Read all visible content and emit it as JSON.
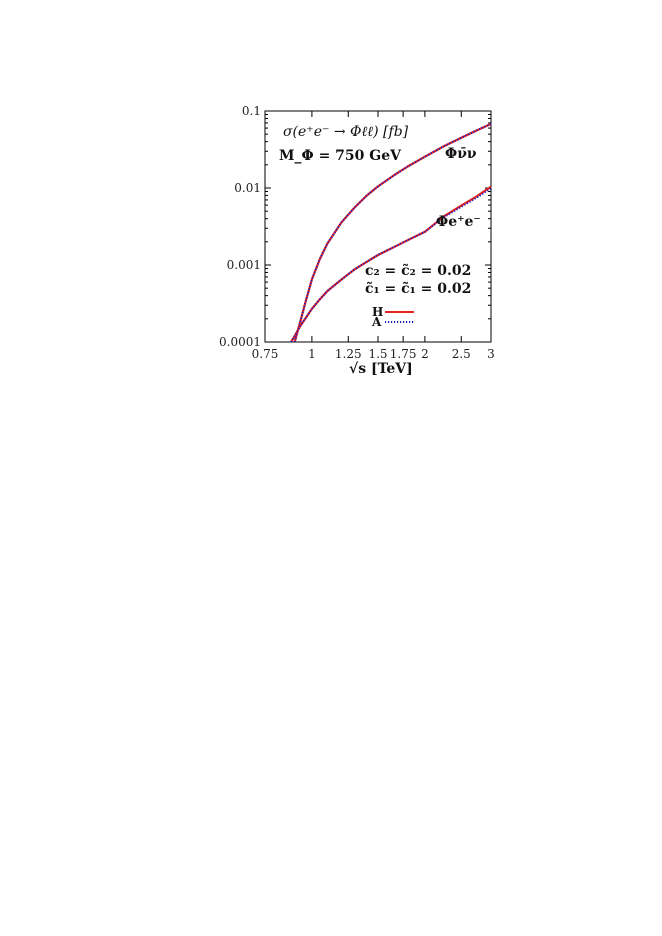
{
  "chart_data": {
    "type": "line",
    "title": "σ(e⁺e⁻ → Φℓℓ) [fb]",
    "subtitle": "M_Φ = 750 GeV",
    "xlabel": "√s [TeV]",
    "ylabel": "",
    "x_scale": "log",
    "y_scale": "log",
    "xlim": [
      0.75,
      3
    ],
    "ylim": [
      0.0001,
      0.1
    ],
    "x_ticks": [
      0.75,
      1,
      1.25,
      1.5,
      1.75,
      2,
      2.5,
      3
    ],
    "x_tick_labels": [
      "0.75",
      "1",
      "1.25",
      "1.5",
      "1.75",
      "2",
      "2.5",
      "3"
    ],
    "y_ticks": [
      0.0001,
      0.001,
      0.01,
      0.1
    ],
    "y_tick_labels": [
      "0.0001",
      "0.001",
      "0.01",
      "0.1"
    ],
    "grid": false,
    "legend_position": "right",
    "annotations": {
      "coupling_line_1": "c₂ = c̃₂ = 0.02",
      "coupling_line_2": "c̃₁ = c̃₁ = 0.02",
      "curve_label_nu": "Φν̄ν",
      "curve_label_ee": "Φe⁺e⁻"
    },
    "series": [
      {
        "name": "H",
        "process": "Φν̄ν",
        "color": "#e8221e",
        "style": "solid",
        "x": [
          0.9,
          0.93,
          0.96,
          1.0,
          1.05,
          1.1,
          1.2,
          1.3,
          1.4,
          1.5,
          1.65,
          1.8,
          2.0,
          2.25,
          2.5,
          2.75,
          3.0
        ],
        "y": [
          0.0001,
          0.00018,
          0.00032,
          0.00065,
          0.0012,
          0.0019,
          0.0036,
          0.0056,
          0.008,
          0.0105,
          0.0145,
          0.019,
          0.0255,
          0.035,
          0.045,
          0.056,
          0.068
        ]
      },
      {
        "name": "A",
        "process": "Φν̄ν",
        "color": "#1d1dbf",
        "style": "dotted",
        "x": [
          0.9,
          0.93,
          0.96,
          1.0,
          1.05,
          1.1,
          1.2,
          1.3,
          1.4,
          1.5,
          1.65,
          1.8,
          2.0,
          2.25,
          2.5,
          2.75,
          3.0
        ],
        "y": [
          0.0001,
          0.00018,
          0.00032,
          0.00065,
          0.0012,
          0.0019,
          0.0036,
          0.0056,
          0.008,
          0.0105,
          0.0145,
          0.019,
          0.0255,
          0.035,
          0.045,
          0.056,
          0.068
        ]
      },
      {
        "name": "H",
        "process": "Φe⁺e⁻",
        "color": "#e8221e",
        "style": "solid",
        "x": [
          0.88,
          0.9,
          0.93,
          0.96,
          1.0,
          1.05,
          1.1,
          1.2,
          1.3,
          1.4,
          1.5,
          1.65,
          1.8,
          2.0,
          2.25,
          2.5,
          2.75,
          3.0
        ],
        "y": [
          0.0001,
          0.00012,
          0.00016,
          0.0002,
          0.00027,
          0.00036,
          0.00046,
          0.00065,
          0.00088,
          0.0011,
          0.00135,
          0.0017,
          0.0021,
          0.0027,
          0.0043,
          0.0059,
          0.0078,
          0.0104
        ]
      },
      {
        "name": "A",
        "process": "Φe⁺e⁻",
        "color": "#1d1dbf",
        "style": "dotted",
        "x": [
          0.88,
          0.9,
          0.93,
          0.96,
          1.0,
          1.05,
          1.1,
          1.2,
          1.3,
          1.4,
          1.5,
          1.65,
          1.8,
          2.0,
          2.25,
          2.5,
          2.75,
          3.0
        ],
        "y": [
          0.0001,
          0.00012,
          0.00016,
          0.0002,
          0.00027,
          0.00036,
          0.00046,
          0.00065,
          0.00088,
          0.0011,
          0.00135,
          0.0017,
          0.0021,
          0.0027,
          0.0042,
          0.0057,
          0.0075,
          0.0099
        ]
      }
    ]
  }
}
